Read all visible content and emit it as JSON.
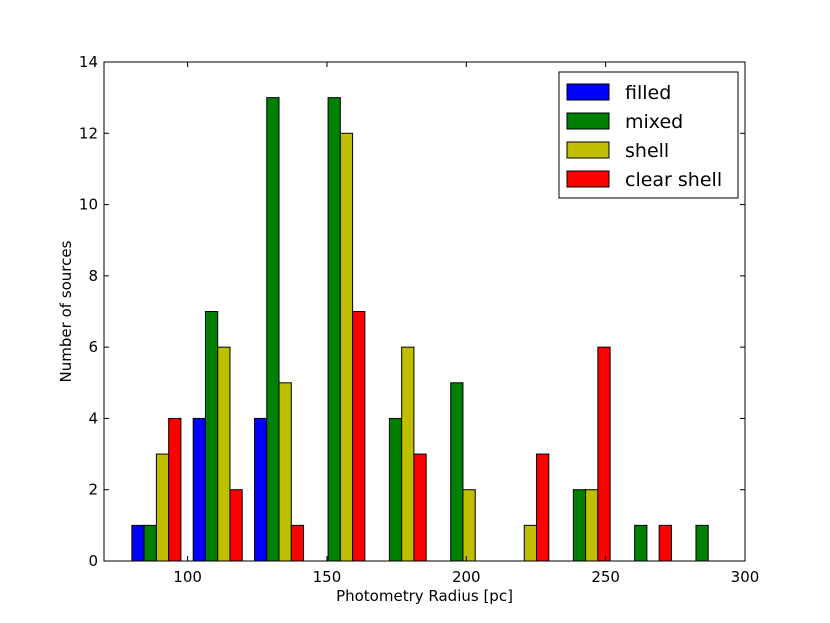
{
  "chart_data": {
    "type": "bar",
    "xlabel": "Photometry Radius [pc]",
    "ylabel": "Number of sources",
    "xlim": [
      70,
      300
    ],
    "ylim": [
      0,
      14
    ],
    "xticks": [
      100,
      150,
      200,
      250,
      300
    ],
    "yticks": [
      0,
      2,
      4,
      6,
      8,
      10,
      12,
      14
    ],
    "grid": false,
    "legend_position": "top-right",
    "bin_width": 22.0,
    "bin_lefts": [
      80,
      102,
      124,
      146,
      168,
      190,
      212,
      234,
      256,
      278
    ],
    "series": [
      {
        "name": "filled",
        "color": "#0000ff",
        "values": [
          1,
          4,
          4,
          0,
          0,
          0,
          0,
          0,
          0,
          0
        ]
      },
      {
        "name": "mixed",
        "color": "#008000",
        "values": [
          1,
          7,
          13,
          13,
          4,
          5,
          0,
          2,
          1,
          1
        ]
      },
      {
        "name": "shell",
        "color": "#bfbf00",
        "values": [
          3,
          6,
          5,
          12,
          6,
          2,
          1,
          2,
          0,
          0
        ]
      },
      {
        "name": "clear shell",
        "color": "#ff0000",
        "values": [
          4,
          2,
          1,
          7,
          3,
          0,
          3,
          6,
          1,
          0
        ]
      }
    ]
  }
}
